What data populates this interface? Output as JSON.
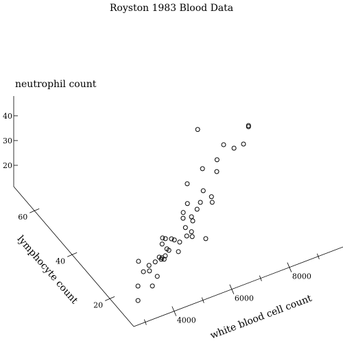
{
  "chart_data": {
    "type": "scatter3d",
    "title": "Royston 1983 Blood Data",
    "xlabel": "white blood cell count",
    "ylabel": "lymphocyte count",
    "zlabel": "neutrophil count",
    "x": [
      8720,
      8720,
      6890,
      7660,
      8350,
      8020,
      7300,
      6730,
      7160,
      6070,
      6560,
      6780,
      5880,
      6330,
      6740,
      6150,
      5670,
      5890,
      5600,
      5870,
      5550,
      5760,
      5530,
      6190,
      5720,
      4690,
      4790,
      5000,
      5100,
      5220,
      4610,
      4710,
      4780,
      5110,
      4380,
      4470,
      4550,
      4590,
      4240,
      3660,
      3960,
      3910,
      3700,
      4180,
      3880,
      3380,
      3250,
      4450
    ],
    "y": [
      40,
      40,
      39,
      37,
      37,
      37,
      35,
      34,
      33,
      32,
      31,
      30,
      29,
      29,
      29,
      28,
      28,
      27,
      27,
      26,
      25,
      25,
      24,
      24,
      24,
      24,
      24,
      24,
      24,
      23,
      23,
      22,
      22,
      22,
      21,
      21,
      21,
      21,
      21,
      21,
      20,
      19,
      19,
      19,
      17,
      17,
      15,
      21
    ],
    "z": [
      36.5,
      36.0,
      43.9,
      36.1,
      33.3,
      33.1,
      33.4,
      33.2,
      31.0,
      31.8,
      27.7,
      25.2,
      27.3,
      25.8,
      24.0,
      24.7,
      25.5,
      23.7,
      24.4,
      23.0,
      22.6,
      20.0,
      20.2,
      16.2,
      19.1,
      23.1,
      22.4,
      21.4,
      20.5,
      20.0,
      21.9,
      20.4,
      19.5,
      17.5,
      19.4,
      18.7,
      17.8,
      19.0,
      18.1,
      20.9,
      18.8,
      17.7,
      18.3,
      14.3,
      13.5,
      15.7,
      12.2,
      18.2
    ],
    "xlim": [
      2600,
      9860
    ],
    "xticks": [
      4000,
      6000,
      8000
    ],
    "x_minor_ticks": [
      3000,
      5000,
      7000,
      9000
    ],
    "ylim": [
      7.3,
      71
    ],
    "yticks": [
      20,
      40,
      60
    ],
    "zlim": [
      11.4,
      48
    ],
    "zticks": [
      20,
      30,
      40
    ],
    "marker_color": "#000000"
  }
}
